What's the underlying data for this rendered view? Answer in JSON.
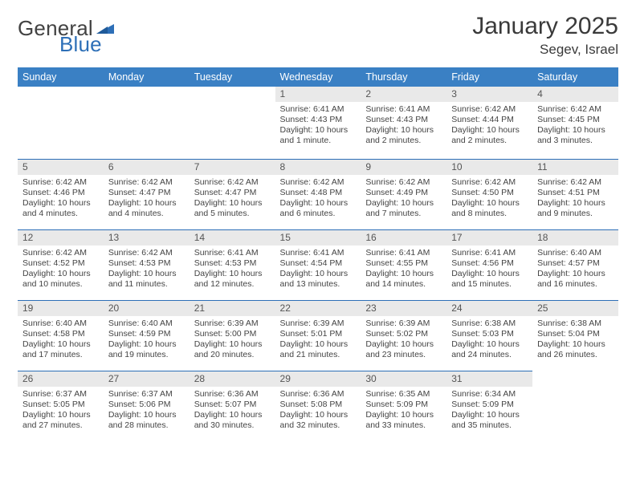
{
  "brand": {
    "name_a": "General",
    "name_b": "Blue",
    "text_color": "#424242",
    "accent_color": "#2d6fb7"
  },
  "header": {
    "title": "January 2025",
    "location": "Segev, Israel"
  },
  "colors": {
    "header_row_bg": "#3a80c4",
    "header_row_text": "#ffffff",
    "daynum_bg": "#e9e9e9",
    "daynum_text": "#555555",
    "day_border": "#2d6fb7",
    "body_text": "#444444",
    "page_bg": "#ffffff"
  },
  "fonts": {
    "title_size_pt": 22,
    "location_size_pt": 13,
    "weekday_size_pt": 9.5,
    "daynum_size_pt": 9,
    "body_size_pt": 8
  },
  "weekdays": [
    "Sunday",
    "Monday",
    "Tuesday",
    "Wednesday",
    "Thursday",
    "Friday",
    "Saturday"
  ],
  "weeks": [
    [
      {
        "n": "",
        "lines": []
      },
      {
        "n": "",
        "lines": []
      },
      {
        "n": "",
        "lines": []
      },
      {
        "n": "1",
        "lines": [
          "Sunrise: 6:41 AM",
          "Sunset: 4:43 PM",
          "Daylight: 10 hours and 1 minute."
        ]
      },
      {
        "n": "2",
        "lines": [
          "Sunrise: 6:41 AM",
          "Sunset: 4:43 PM",
          "Daylight: 10 hours and 2 minutes."
        ]
      },
      {
        "n": "3",
        "lines": [
          "Sunrise: 6:42 AM",
          "Sunset: 4:44 PM",
          "Daylight: 10 hours and 2 minutes."
        ]
      },
      {
        "n": "4",
        "lines": [
          "Sunrise: 6:42 AM",
          "Sunset: 4:45 PM",
          "Daylight: 10 hours and 3 minutes."
        ]
      }
    ],
    [
      {
        "n": "5",
        "lines": [
          "Sunrise: 6:42 AM",
          "Sunset: 4:46 PM",
          "Daylight: 10 hours and 4 minutes."
        ]
      },
      {
        "n": "6",
        "lines": [
          "Sunrise: 6:42 AM",
          "Sunset: 4:47 PM",
          "Daylight: 10 hours and 4 minutes."
        ]
      },
      {
        "n": "7",
        "lines": [
          "Sunrise: 6:42 AM",
          "Sunset: 4:47 PM",
          "Daylight: 10 hours and 5 minutes."
        ]
      },
      {
        "n": "8",
        "lines": [
          "Sunrise: 6:42 AM",
          "Sunset: 4:48 PM",
          "Daylight: 10 hours and 6 minutes."
        ]
      },
      {
        "n": "9",
        "lines": [
          "Sunrise: 6:42 AM",
          "Sunset: 4:49 PM",
          "Daylight: 10 hours and 7 minutes."
        ]
      },
      {
        "n": "10",
        "lines": [
          "Sunrise: 6:42 AM",
          "Sunset: 4:50 PM",
          "Daylight: 10 hours and 8 minutes."
        ]
      },
      {
        "n": "11",
        "lines": [
          "Sunrise: 6:42 AM",
          "Sunset: 4:51 PM",
          "Daylight: 10 hours and 9 minutes."
        ]
      }
    ],
    [
      {
        "n": "12",
        "lines": [
          "Sunrise: 6:42 AM",
          "Sunset: 4:52 PM",
          "Daylight: 10 hours and 10 minutes."
        ]
      },
      {
        "n": "13",
        "lines": [
          "Sunrise: 6:42 AM",
          "Sunset: 4:53 PM",
          "Daylight: 10 hours and 11 minutes."
        ]
      },
      {
        "n": "14",
        "lines": [
          "Sunrise: 6:41 AM",
          "Sunset: 4:53 PM",
          "Daylight: 10 hours and 12 minutes."
        ]
      },
      {
        "n": "15",
        "lines": [
          "Sunrise: 6:41 AM",
          "Sunset: 4:54 PM",
          "Daylight: 10 hours and 13 minutes."
        ]
      },
      {
        "n": "16",
        "lines": [
          "Sunrise: 6:41 AM",
          "Sunset: 4:55 PM",
          "Daylight: 10 hours and 14 minutes."
        ]
      },
      {
        "n": "17",
        "lines": [
          "Sunrise: 6:41 AM",
          "Sunset: 4:56 PM",
          "Daylight: 10 hours and 15 minutes."
        ]
      },
      {
        "n": "18",
        "lines": [
          "Sunrise: 6:40 AM",
          "Sunset: 4:57 PM",
          "Daylight: 10 hours and 16 minutes."
        ]
      }
    ],
    [
      {
        "n": "19",
        "lines": [
          "Sunrise: 6:40 AM",
          "Sunset: 4:58 PM",
          "Daylight: 10 hours and 17 minutes."
        ]
      },
      {
        "n": "20",
        "lines": [
          "Sunrise: 6:40 AM",
          "Sunset: 4:59 PM",
          "Daylight: 10 hours and 19 minutes."
        ]
      },
      {
        "n": "21",
        "lines": [
          "Sunrise: 6:39 AM",
          "Sunset: 5:00 PM",
          "Daylight: 10 hours and 20 minutes."
        ]
      },
      {
        "n": "22",
        "lines": [
          "Sunrise: 6:39 AM",
          "Sunset: 5:01 PM",
          "Daylight: 10 hours and 21 minutes."
        ]
      },
      {
        "n": "23",
        "lines": [
          "Sunrise: 6:39 AM",
          "Sunset: 5:02 PM",
          "Daylight: 10 hours and 23 minutes."
        ]
      },
      {
        "n": "24",
        "lines": [
          "Sunrise: 6:38 AM",
          "Sunset: 5:03 PM",
          "Daylight: 10 hours and 24 minutes."
        ]
      },
      {
        "n": "25",
        "lines": [
          "Sunrise: 6:38 AM",
          "Sunset: 5:04 PM",
          "Daylight: 10 hours and 26 minutes."
        ]
      }
    ],
    [
      {
        "n": "26",
        "lines": [
          "Sunrise: 6:37 AM",
          "Sunset: 5:05 PM",
          "Daylight: 10 hours and 27 minutes."
        ]
      },
      {
        "n": "27",
        "lines": [
          "Sunrise: 6:37 AM",
          "Sunset: 5:06 PM",
          "Daylight: 10 hours and 28 minutes."
        ]
      },
      {
        "n": "28",
        "lines": [
          "Sunrise: 6:36 AM",
          "Sunset: 5:07 PM",
          "Daylight: 10 hours and 30 minutes."
        ]
      },
      {
        "n": "29",
        "lines": [
          "Sunrise: 6:36 AM",
          "Sunset: 5:08 PM",
          "Daylight: 10 hours and 32 minutes."
        ]
      },
      {
        "n": "30",
        "lines": [
          "Sunrise: 6:35 AM",
          "Sunset: 5:09 PM",
          "Daylight: 10 hours and 33 minutes."
        ]
      },
      {
        "n": "31",
        "lines": [
          "Sunrise: 6:34 AM",
          "Sunset: 5:09 PM",
          "Daylight: 10 hours and 35 minutes."
        ]
      },
      {
        "n": "",
        "lines": []
      }
    ]
  ]
}
